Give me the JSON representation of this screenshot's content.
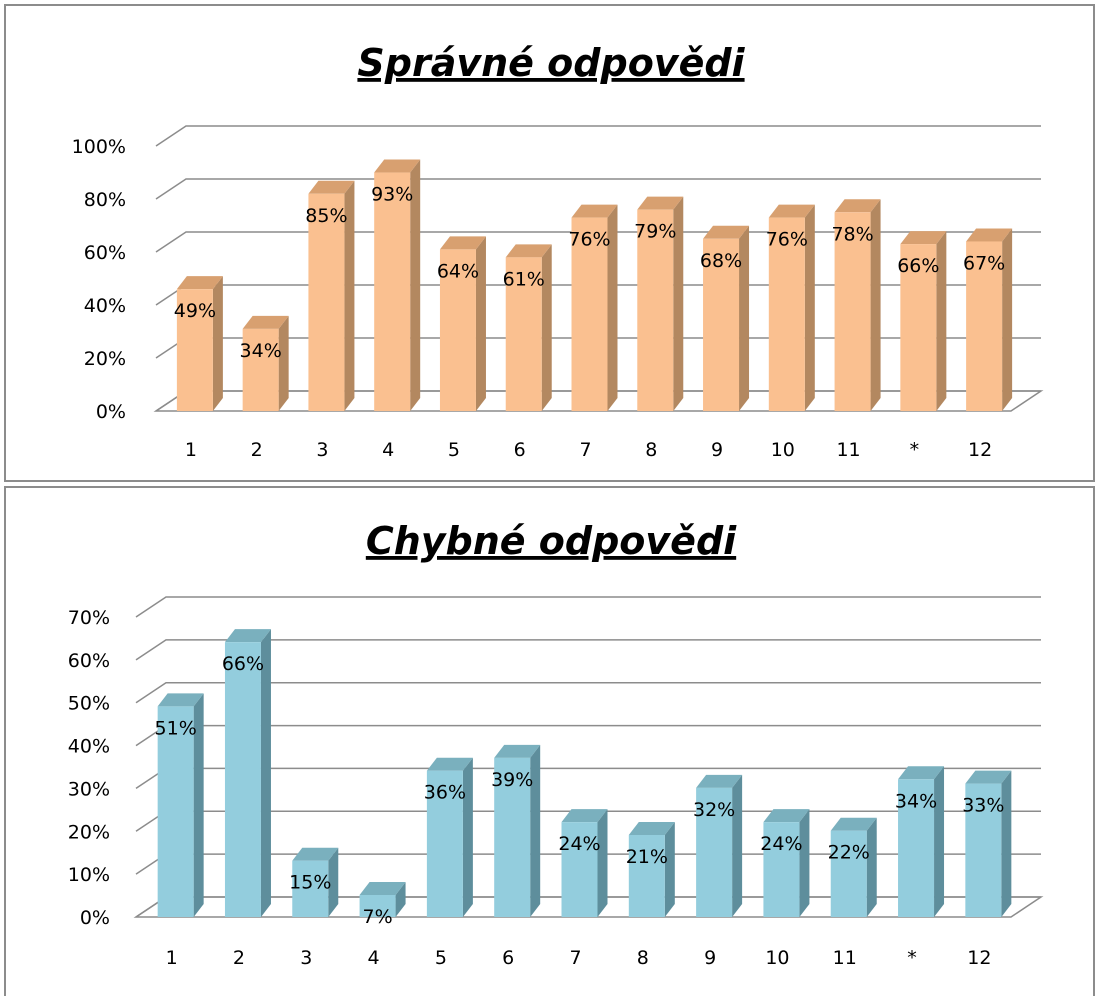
{
  "chart_data": [
    {
      "type": "bar",
      "title": "Správné odpovědi",
      "categories": [
        "1",
        "2",
        "3",
        "4",
        "5",
        "6",
        "7",
        "8",
        "9",
        "10",
        "11",
        "*",
        "12"
      ],
      "values": [
        49,
        34,
        85,
        93,
        64,
        61,
        76,
        79,
        68,
        76,
        78,
        66,
        67
      ],
      "data_labels": [
        "49%",
        "34%",
        "85%",
        "93%",
        "64%",
        "61%",
        "76%",
        "79%",
        "68%",
        "76%",
        "78%",
        "66%",
        "67%"
      ],
      "ylim": [
        0,
        100
      ],
      "yticks": [
        "0%",
        "20%",
        "40%",
        "60%",
        "80%",
        "100%"
      ],
      "grid": true,
      "three_d": true,
      "colors": {
        "front": "#FAC090",
        "side": "#B38860",
        "top": "#D8A070"
      }
    },
    {
      "type": "bar",
      "title": "Chybné odpovědi",
      "categories": [
        "1",
        "2",
        "3",
        "4",
        "5",
        "6",
        "7",
        "8",
        "9",
        "10",
        "11",
        "*",
        "12"
      ],
      "values": [
        51,
        66,
        15,
        7,
        36,
        39,
        24,
        21,
        32,
        24,
        22,
        34,
        33
      ],
      "data_labels": [
        "51%",
        "66%",
        "15%",
        "7%",
        "36%",
        "39%",
        "24%",
        "21%",
        "32%",
        "24%",
        "22%",
        "34%",
        "33%"
      ],
      "ylim": [
        0,
        70
      ],
      "yticks": [
        "0%",
        "10%",
        "20%",
        "30%",
        "40%",
        "50%",
        "60%",
        "70%"
      ],
      "grid": true,
      "three_d": true,
      "colors": {
        "front": "#93CDDD",
        "side": "#5E8E9C",
        "top": "#7AB0BE"
      }
    }
  ]
}
